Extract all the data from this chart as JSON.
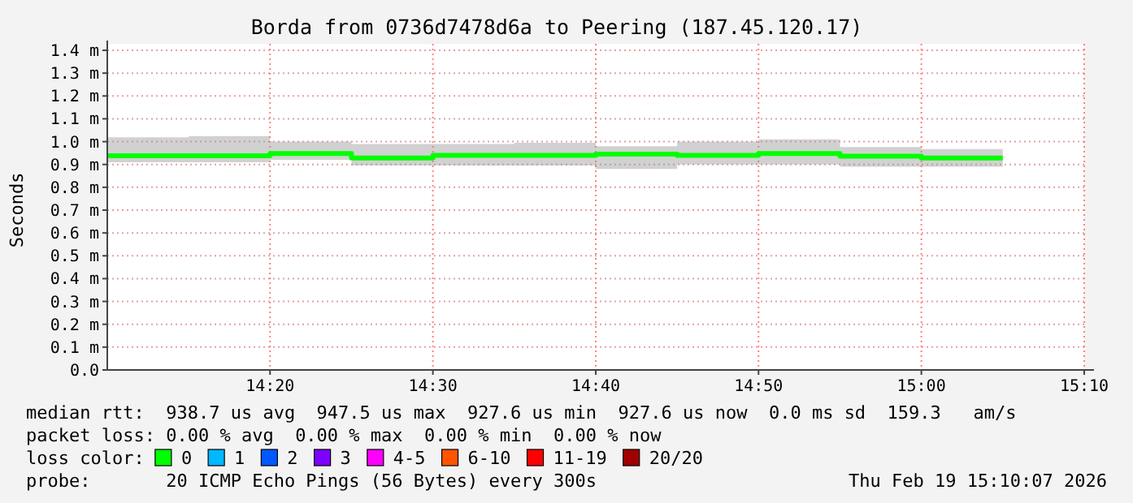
{
  "chart_data": {
    "type": "step",
    "title": "Borda from 0736d7478d6a to Peering (187.45.120.17)",
    "ylabel": "Seconds",
    "x": [
      14.1667,
      14.25,
      14.3333,
      14.4167,
      14.5,
      14.5833,
      14.6667,
      14.75,
      14.8333,
      14.9167,
      15.0,
      15.0833
    ],
    "series": [
      {
        "color": "#00ff00",
        "values": [
          0.938,
          0.938,
          0.948,
          0.928,
          0.94,
          0.94,
          0.945,
          0.94,
          0.948,
          0.936,
          0.928,
          0.928
        ],
        "lower": [
          0.91,
          0.91,
          0.92,
          0.895,
          0.895,
          0.895,
          0.88,
          0.9,
          0.9,
          0.89,
          0.89,
          0.89
        ],
        "upper": [
          1.019,
          1.024,
          1.0,
          0.99,
          0.99,
          0.995,
          0.98,
          1.0,
          1.01,
          0.976,
          0.967,
          0.967
        ]
      }
    ],
    "xlim": [
      14.1667,
      15.1667
    ],
    "xticks": [
      {
        "value": 14.3333,
        "label": "14:20"
      },
      {
        "value": 14.5,
        "label": "14:30"
      },
      {
        "value": 14.6667,
        "label": "14:40"
      },
      {
        "value": 14.8333,
        "label": "14:50"
      },
      {
        "value": 15.0,
        "label": "15:00"
      },
      {
        "value": 15.1667,
        "label": "15:10"
      }
    ],
    "ylim": [
      0,
      1.4
    ],
    "yticks": [
      {
        "value": 0,
        "label": "0.0"
      },
      {
        "value": 0.1,
        "label": "0.1 m"
      },
      {
        "value": 0.2,
        "label": "0.2 m"
      },
      {
        "value": 0.3,
        "label": "0.3 m"
      },
      {
        "value": 0.4,
        "label": "0.4 m"
      },
      {
        "value": 0.5,
        "label": "0.5 m"
      },
      {
        "value": 0.6,
        "label": "0.6 m"
      },
      {
        "value": 0.7,
        "label": "0.7 m"
      },
      {
        "value": 0.8,
        "label": "0.8 m"
      },
      {
        "value": 0.9,
        "label": "0.9 m"
      },
      {
        "value": 1.0,
        "label": "1.0 m"
      },
      {
        "value": 1.1,
        "label": "1.1 m"
      },
      {
        "value": 1.2,
        "label": "1.2 m"
      },
      {
        "value": 1.3,
        "label": "1.3 m"
      },
      {
        "value": 1.4,
        "label": "1.4 m"
      }
    ],
    "grid": true,
    "annotations": [
      "median rtt:  938.7 us avg  947.5 us max  927.6 us min  927.6 us now  0.0 ms sd  159.3   am/s",
      "packet loss: 0.00 % avg  0.00 % max  0.00 % min  0.00 % now",
      "loss color:",
      "0",
      "1",
      "2",
      "3",
      "4-5",
      "6-10",
      "11-19",
      "20/20",
      "probe:       20 ICMP Echo Pings (56 Bytes) every 300s",
      "Thu Feb 19 15:10:07 2026"
    ]
  }
}
